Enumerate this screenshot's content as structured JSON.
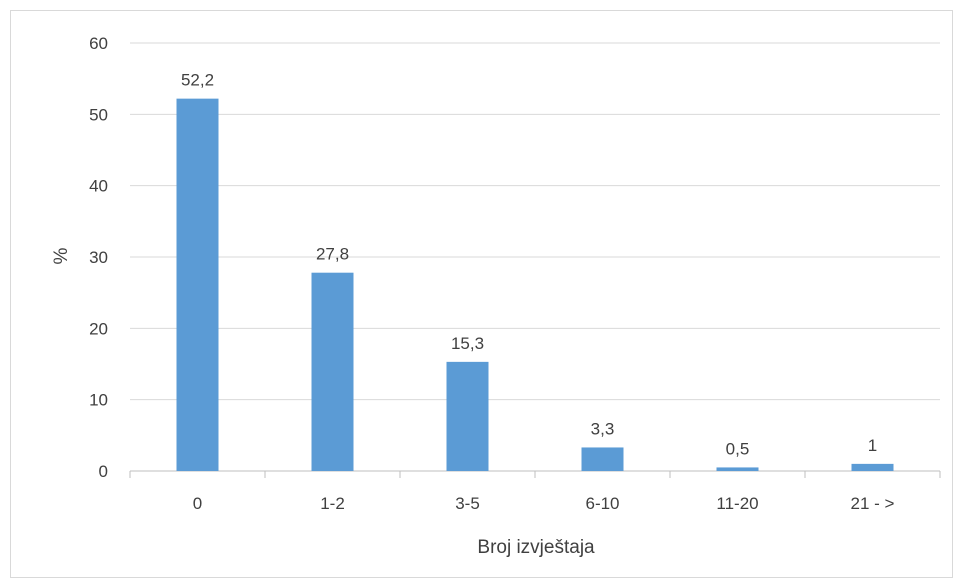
{
  "chart_data": {
    "type": "bar",
    "categories": [
      "0",
      "1-2",
      "3-5",
      "6-10",
      "11-20",
      "21 - >"
    ],
    "values": [
      52.2,
      27.8,
      15.3,
      3.3,
      0.5,
      1
    ],
    "data_labels": [
      "52,2",
      "27,8",
      "15,3",
      "3,3",
      "0,5",
      "1"
    ],
    "xlabel": "Broj izvještaja",
    "ylabel": "%",
    "ylim": [
      0,
      60
    ],
    "yticks": [
      0,
      10,
      20,
      30,
      40,
      50,
      60
    ],
    "grid": true,
    "legend": "none",
    "bar_color": "#5b9bd5",
    "grid_color": "#d9d9d9",
    "axis_color": "#bfbfbf"
  }
}
